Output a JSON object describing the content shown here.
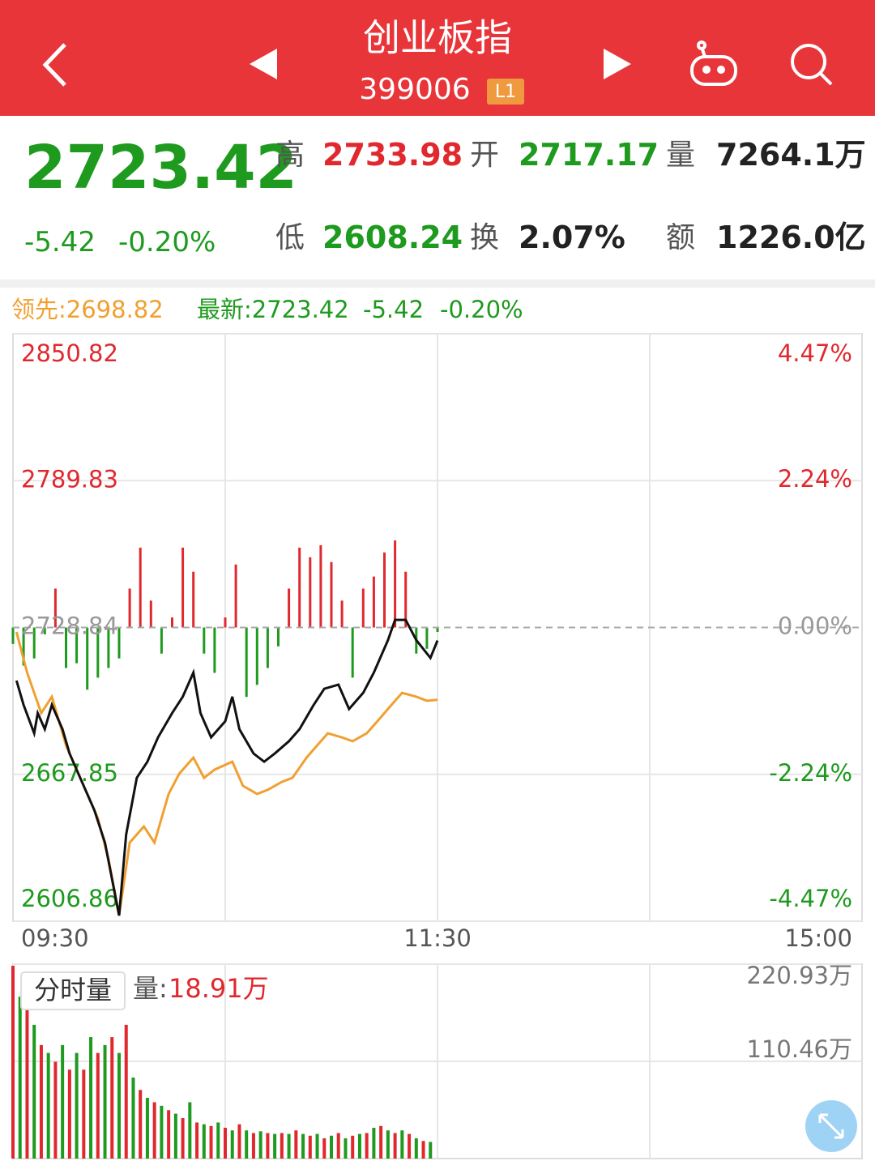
{
  "header": {
    "title": "创业板指",
    "code": "399006",
    "badge": "L1"
  },
  "quote": {
    "price": "2723.42",
    "change": "-5.42",
    "change_pct": "-0.20%",
    "color": "#1e9a1e",
    "stats": [
      {
        "label": "高",
        "value": "2733.98",
        "color": "#e0282e"
      },
      {
        "label": "开",
        "value": "2717.17",
        "color": "#1e9a1e"
      },
      {
        "label": "量",
        "value": "7264.1万",
        "color": "#222222"
      },
      {
        "label": "低",
        "value": "2608.24",
        "color": "#1e9a1e"
      },
      {
        "label": "换",
        "value": "2.07%",
        "color": "#222222"
      },
      {
        "label": "额",
        "value": "1226.0亿",
        "color": "#222222"
      }
    ]
  },
  "legend": {
    "lead": "领先:2698.82",
    "latest": "最新:2723.42",
    "change": "-5.42",
    "change_pct": "-0.20%",
    "lead_color": "#f0a030",
    "latest_color": "#1e9a1e"
  },
  "chart_data": [
    {
      "type": "line",
      "xlim": [
        0,
        240
      ],
      "xticks": [
        {
          "value": 0,
          "label": "09:30"
        },
        {
          "value": 120,
          "label": "11:30"
        },
        {
          "value": 240,
          "label": "15:00"
        }
      ],
      "ylim": [
        2606.86,
        2850.82
      ],
      "yticks": [
        2606.86,
        2667.85,
        2728.84,
        2789.83,
        2850.82
      ],
      "y2lim": [
        -4.47,
        4.47
      ],
      "y2ticks": [
        {
          "value": -4.47,
          "label": "-4.47%"
        },
        {
          "value": -2.24,
          "label": "-2.24%"
        },
        {
          "value": 0,
          "label": "0.00%"
        },
        {
          "value": 2.24,
          "label": "2.24%"
        },
        {
          "value": 4.47,
          "label": "4.47%"
        }
      ],
      "up_color": "#e0282e",
      "down_color": "#1e9a1e",
      "flat_color": "#999999",
      "bars": {
        "x": [
          0,
          3,
          6,
          9,
          12,
          15,
          18,
          21,
          24,
          27,
          30,
          33,
          36,
          39,
          42,
          45,
          48,
          51,
          54,
          57,
          60,
          63,
          66,
          69,
          72,
          75,
          78,
          81,
          84,
          87,
          90,
          93,
          96,
          99,
          102,
          105,
          108,
          111,
          114,
          117,
          120
        ],
        "values": [
          2722,
          2713,
          2716,
          2726,
          2745,
          2712,
          2714,
          2703,
          2708,
          2712,
          2716,
          2745,
          2762,
          2740,
          2718,
          2733,
          2762,
          2752,
          2718,
          2710,
          2733,
          2755,
          2700,
          2705,
          2712,
          2721,
          2745,
          2762,
          2758,
          2763,
          2756,
          2740,
          2708,
          2745,
          2750,
          2760,
          2765,
          2752,
          2718,
          2720,
          2727
        ]
      },
      "series": [
        {
          "color": "#f0a030",
          "x": [
            1,
            4,
            8,
            11,
            15,
            19,
            24,
            27,
            30,
            33,
            37,
            40,
            44,
            47,
            51,
            54,
            57,
            62,
            65,
            69,
            72,
            76,
            79,
            83,
            86,
            89,
            93,
            96,
            100,
            103,
            107,
            110,
            114,
            117,
            120
          ],
          "values": [
            2727.0,
            2710.1,
            2693.3,
            2700.1,
            2679.9,
            2666.4,
            2649.6,
            2632.7,
            2609.2,
            2639.5,
            2646.2,
            2639.5,
            2659.7,
            2668.1,
            2674.8,
            2666.4,
            2669.8,
            2673.1,
            2663.1,
            2659.7,
            2661.4,
            2664.7,
            2666.4,
            2674.8,
            2679.9,
            2684.9,
            2683.2,
            2681.6,
            2684.9,
            2689.9,
            2696.7,
            2701.7,
            2700.1,
            2698.4,
            2698.82
          ]
        },
        {
          "color": "#111111",
          "x": [
            1,
            3,
            6,
            7,
            9,
            11,
            14,
            16,
            19,
            23,
            26,
            30,
            32,
            35,
            38,
            41,
            45,
            48,
            51,
            53,
            56,
            60,
            62,
            64,
            68,
            71,
            74,
            78,
            81,
            85,
            88,
            92,
            95,
            99,
            102,
            106,
            108,
            111,
            114,
            118,
            120
          ],
          "values": [
            2706.8,
            2696.7,
            2684.9,
            2693.3,
            2686.6,
            2696.7,
            2686.6,
            2676.5,
            2666.4,
            2653.0,
            2639.5,
            2609.2,
            2642.9,
            2666.4,
            2673.1,
            2683.2,
            2693.3,
            2700.1,
            2710.1,
            2693.3,
            2683.2,
            2689.9,
            2700.1,
            2686.6,
            2676.5,
            2673.1,
            2676.5,
            2681.6,
            2686.6,
            2696.7,
            2703.4,
            2705.1,
            2695.0,
            2701.7,
            2710.1,
            2723.6,
            2732.0,
            2732.0,
            2723.6,
            2716.2,
            2723.42
          ]
        }
      ]
    },
    {
      "type": "bar",
      "title": "分时量",
      "readout_label": "量:",
      "readout": "18.91万",
      "xlim": [
        0,
        240
      ],
      "ylim": [
        0,
        220.93
      ],
      "yticks": [
        {
          "value": 110.46,
          "label": "110.46万"
        },
        {
          "value": 220.93,
          "label": "220.93万"
        }
      ],
      "colors": [
        "#e0282e",
        "#1e9a1e"
      ],
      "x": [
        0,
        2,
        4,
        6,
        8,
        10,
        12,
        14,
        16,
        18,
        20,
        22,
        24,
        26,
        28,
        30,
        32,
        34,
        36,
        38,
        40,
        42,
        44,
        46,
        48,
        50,
        52,
        54,
        56,
        58,
        60,
        62,
        64,
        66,
        68,
        70,
        72,
        74,
        76,
        78,
        80,
        82,
        84,
        86,
        88,
        90,
        92,
        94,
        96,
        98,
        100,
        102,
        104,
        106,
        108,
        110,
        112,
        114,
        116,
        118
      ],
      "values": [
        219,
        184,
        175,
        152,
        129,
        120,
        110,
        129,
        101,
        120,
        101,
        138,
        120,
        129,
        138,
        120,
        152,
        92,
        78,
        69,
        64,
        60,
        55,
        51,
        46,
        64,
        41,
        39,
        37,
        41,
        35,
        32,
        39,
        32,
        29,
        31,
        29,
        28,
        29,
        28,
        32,
        28,
        26,
        28,
        23,
        26,
        29,
        23,
        26,
        28,
        29,
        35,
        37,
        32,
        29,
        32,
        28,
        23,
        20,
        18.91
      ]
    }
  ]
}
